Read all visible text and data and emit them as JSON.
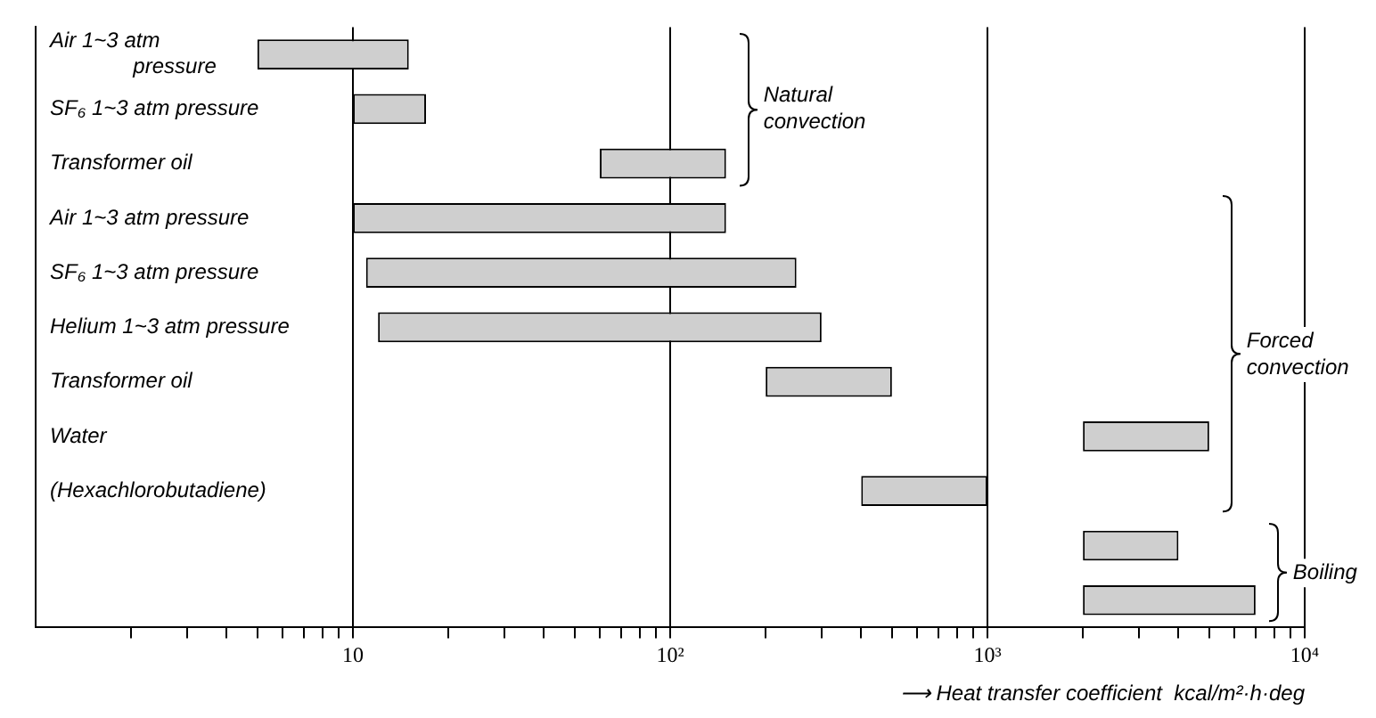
{
  "chart_data": {
    "type": "bar",
    "orientation": "horizontal",
    "log": "x",
    "categories": [
      "Air 1~3 atm pressure",
      "SF₆ 1~3 atm pressure",
      "Transformer oil",
      "Air 1~3 atm pressure",
      "SF₆ 1~3 atm pressure",
      "Helium 1~3 atm pressure",
      "Transformer oil",
      "Water",
      "(Hexachlorobutadiene)",
      null,
      null
    ],
    "base": [
      5,
      10,
      60,
      10,
      11,
      12,
      200,
      2000,
      400,
      2000,
      2000
    ],
    "values": [
      10,
      7,
      90,
      140,
      239,
      288,
      300,
      3000,
      600,
      2000,
      5000
    ],
    "color": "#cfcfcf",
    "xlim": [
      1,
      10000
    ],
    "xticks": [
      {
        "value": 2,
        "label": null
      },
      {
        "value": 3,
        "label": null
      },
      {
        "value": 4,
        "label": null
      },
      {
        "value": 5,
        "label": null
      },
      {
        "value": 6,
        "label": null
      },
      {
        "value": 7,
        "label": null
      },
      {
        "value": 8,
        "label": null
      },
      {
        "value": 9,
        "label": null
      },
      {
        "value": 10,
        "label": "10"
      },
      {
        "value": 20,
        "label": null
      },
      {
        "value": 30,
        "label": null
      },
      {
        "value": 40,
        "label": null
      },
      {
        "value": 50,
        "label": null
      },
      {
        "value": 60,
        "label": null
      },
      {
        "value": 70,
        "label": null
      },
      {
        "value": 80,
        "label": null
      },
      {
        "value": 90,
        "label": null
      },
      {
        "value": 100,
        "label": "10²"
      },
      {
        "value": 200,
        "label": null
      },
      {
        "value": 300,
        "label": null
      },
      {
        "value": 400,
        "label": null
      },
      {
        "value": 500,
        "label": null
      },
      {
        "value": 600,
        "label": null
      },
      {
        "value": 700,
        "label": null
      },
      {
        "value": 800,
        "label": null
      },
      {
        "value": 900,
        "label": null
      },
      {
        "value": 1000,
        "label": "10³"
      },
      {
        "value": 2000,
        "label": null
      },
      {
        "value": 3000,
        "label": null
      },
      {
        "value": 4000,
        "label": null
      },
      {
        "value": 5000,
        "label": null
      },
      {
        "value": 6000,
        "label": null
      },
      {
        "value": 7000,
        "label": null
      },
      {
        "value": 8000,
        "label": null
      },
      {
        "value": 9000,
        "label": null
      },
      {
        "value": 10000,
        "label": "10⁴"
      }
    ],
    "xlabel": "⟶ Heat transfer coefficient  kcal/m²·h·deg",
    "annotations": [
      "Natural convection",
      "Forced convection",
      "Boiling"
    ],
    "grid": "x",
    "legend": false
  }
}
